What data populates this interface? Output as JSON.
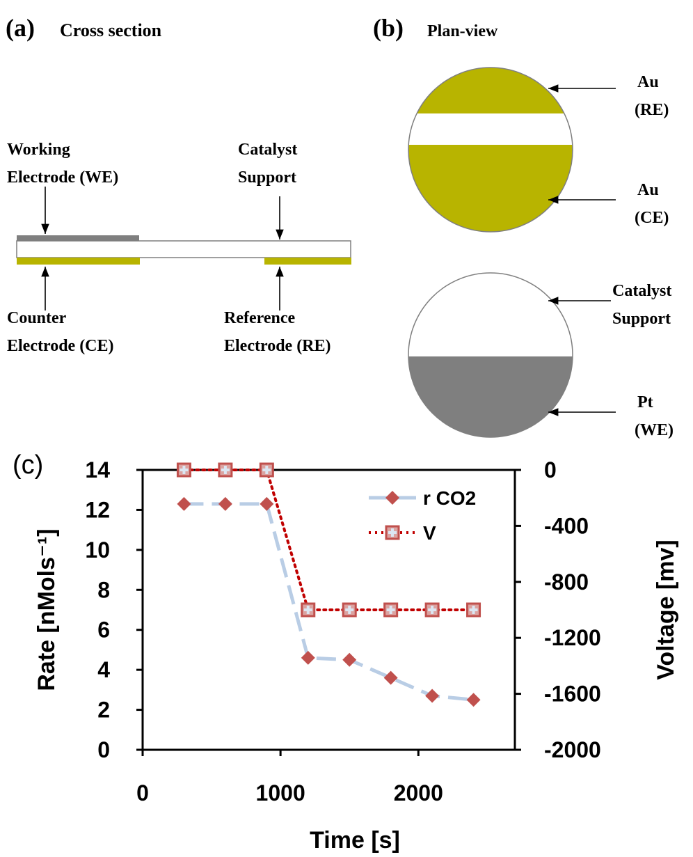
{
  "panel_a": {
    "label": "(a)",
    "title": "Cross section",
    "labels": [
      [
        "Working",
        "Electrode (WE)"
      ],
      [
        "Catalyst",
        "Support"
      ],
      [
        "Counter",
        "Electrode (CE)"
      ],
      [
        "Reference",
        "Electrode (RE)"
      ]
    ]
  },
  "panel_b": {
    "label": "(b)",
    "title": "Plan-view",
    "labels": [
      [
        "Au",
        "(RE)"
      ],
      [
        "Au",
        "(CE)"
      ],
      [
        "Catalyst",
        "Support"
      ],
      [
        "Pt",
        "(WE)"
      ]
    ]
  },
  "chart_data": {
    "type": "line",
    "panel_label": "(c)",
    "xlabel": "Time [s]",
    "ylabel": "Rate [nMols⁻¹]",
    "y2label": "Voltage [mv]",
    "x": [
      300,
      600,
      900,
      1200,
      1500,
      1800,
      2100,
      2400
    ],
    "xlim": [
      0,
      2700
    ],
    "xticks": [
      0,
      1000,
      2000
    ],
    "ylim": [
      0,
      14
    ],
    "yticks": [
      0,
      2,
      4,
      6,
      8,
      10,
      12,
      14
    ],
    "y2lim": [
      -2000,
      0
    ],
    "y2ticks": [
      -2000,
      -1600,
      -1200,
      -800,
      -400,
      0
    ],
    "legend": "upper right",
    "series": [
      {
        "name": "r CO2",
        "color": "#b9cde5",
        "marker_color": "#c0504d",
        "marker": "diamond",
        "line_style": "dashed",
        "values": [
          12.3,
          12.3,
          12.3,
          4.6,
          4.5,
          3.6,
          2.7,
          2.5
        ]
      },
      {
        "name": "V",
        "axis": "y2",
        "color": "#c00000",
        "marker_color": "#c0504d",
        "marker": "plus-square",
        "line_style": "dotted",
        "values": [
          0,
          0,
          0,
          -1000,
          -1000,
          -1000,
          -1000,
          -1000
        ]
      }
    ]
  }
}
